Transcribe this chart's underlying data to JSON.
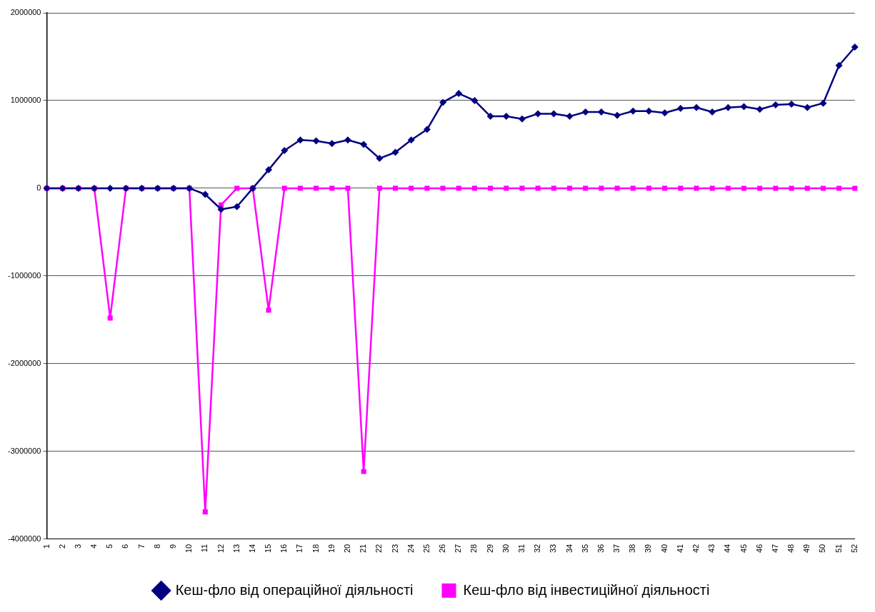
{
  "chart_data": {
    "type": "line",
    "categories": [
      "1",
      "2",
      "3",
      "4",
      "5",
      "6",
      "7",
      "8",
      "9",
      "10",
      "11",
      "12",
      "13",
      "14",
      "15",
      "16",
      "17",
      "18",
      "19",
      "20",
      "21",
      "22",
      "23",
      "24",
      "25",
      "26",
      "27",
      "28",
      "29",
      "30",
      "31",
      "32",
      "33",
      "34",
      "35",
      "36",
      "37",
      "38",
      "39",
      "40",
      "41",
      "42",
      "43",
      "44",
      "45",
      "46",
      "47",
      "48",
      "49",
      "50",
      "51",
      "52"
    ],
    "series": [
      {
        "name": "Кеш-фло від операційної діяльності",
        "color": "#000080",
        "marker": "diamond",
        "values": [
          0,
          0,
          0,
          0,
          0,
          0,
          0,
          0,
          0,
          0,
          -70000,
          -240000,
          -210000,
          0,
          210000,
          430000,
          550000,
          540000,
          510000,
          550000,
          500000,
          340000,
          410000,
          550000,
          670000,
          980000,
          1080000,
          1000000,
          820000,
          820000,
          790000,
          850000,
          850000,
          820000,
          870000,
          870000,
          830000,
          880000,
          880000,
          860000,
          910000,
          920000,
          870000,
          920000,
          930000,
          900000,
          950000,
          960000,
          920000,
          970000,
          1400000,
          1610000
        ]
      },
      {
        "name": "Кеш-фло від інвестиційної діяльності",
        "color": "#ff00ff",
        "marker": "square",
        "values": [
          0,
          0,
          0,
          0,
          -1480000,
          0,
          0,
          0,
          0,
          0,
          -3690000,
          -190000,
          0,
          0,
          -1390000,
          0,
          0,
          0,
          0,
          0,
          -3230000,
          0,
          0,
          0,
          0,
          0,
          0,
          0,
          0,
          0,
          0,
          0,
          0,
          0,
          0,
          0,
          0,
          0,
          0,
          0,
          0,
          0,
          0,
          0,
          0,
          0,
          0,
          0,
          0,
          0,
          0,
          0
        ]
      }
    ],
    "ylim": [
      -4000000,
      2000000
    ],
    "yticks": [
      -4000000,
      -3000000,
      -2000000,
      -1000000,
      0,
      1000000,
      2000000
    ],
    "grid": "y",
    "legend": "bottom"
  }
}
